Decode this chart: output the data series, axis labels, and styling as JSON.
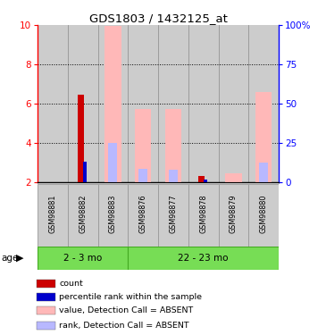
{
  "title": "GDS1803 / 1432125_at",
  "samples": [
    "GSM98881",
    "GSM98882",
    "GSM98883",
    "GSM98876",
    "GSM98877",
    "GSM98878",
    "GSM98879",
    "GSM98880"
  ],
  "groups": [
    {
      "label": "2 - 3 mo",
      "count": 3
    },
    {
      "label": "22 - 23 mo",
      "count": 5
    }
  ],
  "ylim_left": [
    2,
    10
  ],
  "ylim_right": [
    0,
    100
  ],
  "yticks_left": [
    2,
    4,
    6,
    8,
    10
  ],
  "yticks_right": [
    0,
    25,
    50,
    75,
    100
  ],
  "value_absent": [
    null,
    null,
    9.95,
    5.75,
    5.75,
    null,
    2.45,
    6.6
  ],
  "rank_absent": [
    null,
    null,
    4.0,
    2.7,
    2.65,
    null,
    null,
    3.0
  ],
  "count_value": [
    null,
    6.45,
    null,
    null,
    null,
    2.35,
    null,
    null
  ],
  "percentile_value": [
    null,
    3.05,
    null,
    null,
    null,
    2.15,
    null,
    null
  ],
  "bar_color_absent_value": "#ffb8b8",
  "bar_color_absent_rank": "#b8b8ff",
  "bar_color_count": "#cc0000",
  "bar_color_percentile": "#0000cc",
  "group_color": "#77dd55",
  "group_border_color": "#44aa22",
  "sample_bg_color": "#cccccc",
  "sample_border_color": "#999999",
  "ybaseline": 2,
  "legend_items": [
    {
      "color": "#cc0000",
      "label": "count"
    },
    {
      "color": "#0000cc",
      "label": "percentile rank within the sample"
    },
    {
      "color": "#ffb8b8",
      "label": "value, Detection Call = ABSENT"
    },
    {
      "color": "#b8b8ff",
      "label": "rank, Detection Call = ABSENT"
    }
  ]
}
